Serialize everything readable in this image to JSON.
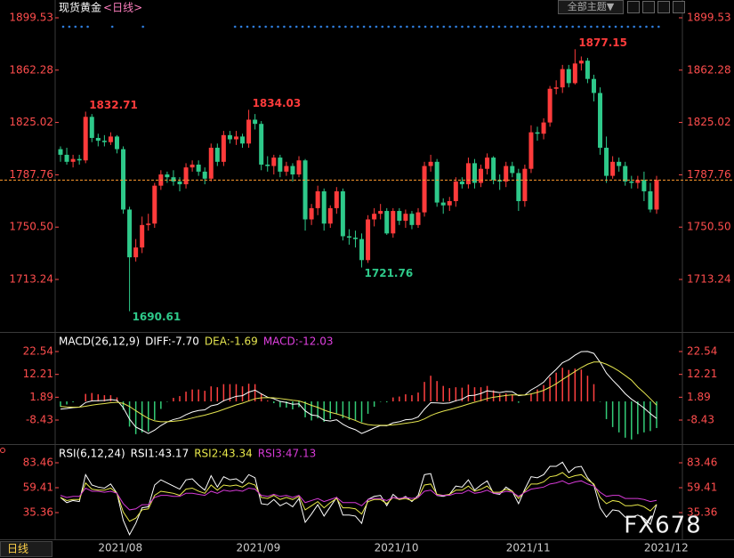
{
  "ui": {
    "theme_button": "全部主题▼",
    "tab": "日线",
    "watermark": "FX678"
  },
  "chart_data": [
    {
      "type": "candlestick",
      "title": "现货黄金",
      "subtitle": "<日线>",
      "categories": [
        null,
        null,
        null,
        null,
        null,
        null,
        "2021/08",
        null,
        null,
        null,
        null,
        null,
        null,
        null,
        null,
        null,
        null,
        null,
        null,
        null,
        null,
        null,
        null,
        null,
        null,
        null,
        null,
        null,
        "2021/09",
        null,
        null,
        null,
        null,
        null,
        null,
        null,
        null,
        null,
        null,
        null,
        null,
        null,
        null,
        null,
        null,
        null,
        null,
        null,
        null,
        null,
        "2021/10",
        null,
        null,
        null,
        null,
        null,
        null,
        null,
        null,
        null,
        null,
        null,
        null,
        null,
        null,
        null,
        null,
        null,
        null,
        null,
        null,
        "2021/11",
        null,
        null,
        null,
        null,
        null,
        null,
        null,
        null,
        null,
        null,
        null,
        null,
        null,
        null,
        null,
        null,
        null,
        null,
        null,
        null,
        null,
        "2021/12",
        null,
        null
      ],
      "open": [
        1806,
        1802,
        1797,
        1799,
        1798,
        1829,
        1814,
        1812,
        1811,
        1815,
        1806,
        1763,
        1729,
        1736,
        1752,
        1753,
        1780,
        1788,
        1786,
        1783,
        1781,
        1793,
        1795,
        1790,
        1785,
        1807,
        1797,
        1816,
        1813,
        1815,
        1810,
        1827,
        1824,
        1795,
        1794,
        1800,
        1790,
        1794,
        1788,
        1798,
        1756,
        1764,
        1776,
        1753,
        1764,
        1776,
        1744,
        1743,
        1742,
        1727,
        1756,
        1760,
        1762,
        1746,
        1762,
        1755,
        1760,
        1752,
        1761,
        1794,
        1797,
        1768,
        1766,
        1769,
        1783,
        1781,
        1796,
        1782,
        1792,
        1800,
        1784,
        1783,
        1794,
        1789,
        1769,
        1792,
        1818,
        1817,
        1825,
        1849,
        1850,
        1863,
        1853,
        1867,
        1869,
        1856,
        1846,
        1807,
        1787,
        1797,
        1794,
        1783,
        1782,
        1784,
        1776,
        1763
      ],
      "high": [
        1808,
        1807,
        1802,
        1802,
        1832.71,
        1831,
        1817,
        1816,
        1818,
        1816,
        1808,
        1765,
        1742,
        1758,
        1760,
        1782,
        1791,
        1790,
        1791,
        1786,
        1796,
        1798,
        1798,
        1793,
        1810,
        1810,
        1819,
        1819,
        1819,
        1817,
        1834.03,
        1831,
        1826,
        1801,
        1802,
        1802,
        1797,
        1796,
        1801,
        1799,
        1767,
        1780,
        1778,
        1766,
        1779,
        1778,
        1749,
        1748,
        1746,
        1759,
        1764,
        1767,
        1764,
        1764,
        1764,
        1763,
        1762,
        1764,
        1797,
        1802,
        1799,
        1771,
        1772,
        1786,
        1786,
        1800,
        1799,
        1795,
        1803,
        1801,
        1788,
        1797,
        1797,
        1792,
        1795,
        1823,
        1822,
        1828,
        1851,
        1855,
        1866,
        1866,
        1877.15,
        1872,
        1871,
        1859,
        1850,
        1815,
        1801,
        1800,
        1797,
        1787,
        1787,
        1790,
        1782,
        1787
      ],
      "low": [
        1797,
        1795,
        1793,
        1795,
        1796,
        1811,
        1808,
        1808,
        1809,
        1803,
        1760,
        1690.61,
        1726,
        1732,
        1748,
        1750,
        1777,
        1782,
        1780,
        1776,
        1778,
        1790,
        1787,
        1781,
        1783,
        1794,
        1794,
        1810,
        1809,
        1807,
        1807,
        1820,
        1791,
        1790,
        1788,
        1786,
        1787,
        1783,
        1786,
        1748,
        1752,
        1759,
        1748,
        1750,
        1760,
        1741,
        1738,
        1736,
        1721.76,
        1725,
        1751,
        1756,
        1745,
        1743,
        1752,
        1750,
        1749,
        1750,
        1758,
        1790,
        1765,
        1760,
        1762,
        1765,
        1778,
        1778,
        1778,
        1779,
        1788,
        1781,
        1777,
        1779,
        1786,
        1762,
        1765,
        1789,
        1812,
        1813,
        1822,
        1845,
        1846,
        1850,
        1852,
        1862,
        1853,
        1840,
        1802,
        1782,
        1785,
        1790,
        1780,
        1778,
        1778,
        1769,
        1761,
        1760
      ],
      "close": [
        1802,
        1797,
        1799,
        1798,
        1829,
        1814,
        1812,
        1811,
        1815,
        1806,
        1763,
        1729,
        1736,
        1752,
        1753,
        1780,
        1788,
        1786,
        1783,
        1781,
        1793,
        1795,
        1790,
        1785,
        1807,
        1797,
        1816,
        1813,
        1815,
        1810,
        1827,
        1824,
        1795,
        1794,
        1800,
        1790,
        1794,
        1788,
        1798,
        1756,
        1764,
        1776,
        1753,
        1764,
        1776,
        1744,
        1743,
        1742,
        1727,
        1756,
        1760,
        1762,
        1746,
        1762,
        1755,
        1760,
        1752,
        1761,
        1794,
        1797,
        1768,
        1766,
        1769,
        1783,
        1781,
        1796,
        1782,
        1792,
        1800,
        1784,
        1783,
        1794,
        1789,
        1769,
        1792,
        1818,
        1817,
        1825,
        1849,
        1850,
        1863,
        1853,
        1867,
        1869,
        1856,
        1846,
        1807,
        1787,
        1797,
        1794,
        1783,
        1782,
        1784,
        1776,
        1763,
        1784
      ],
      "up_color": "#ff3b3b",
      "down_color": "#2ec98a",
      "last_line_color": "#ff9a2e",
      "ylim": [
        1676.49,
        1912.2
      ],
      "yticks": [
        1899.53,
        1862.28,
        1825.02,
        1787.76,
        {
          "value": 1750.5,
          "label": "1750.50"
        },
        1713.24
      ]
    },
    {
      "type": "macd",
      "title": "MACD(26,12,9)",
      "series": [
        {
          "name": "DIFF:-7.70",
          "color": "#ffffff",
          "values": [
            -3.5,
            -3.2,
            -2.8,
            -2.6,
            -0.5,
            0.2,
            0.3,
            0.4,
            0.8,
            0.5,
            -2.8,
            -8.0,
            -11.6,
            -13.0,
            -14.5,
            -13.0,
            -10.9,
            -9.3,
            -8.2,
            -7.5,
            -6.0,
            -4.8,
            -4.1,
            -3.8,
            -2.0,
            -1.4,
            0.3,
            1.3,
            2.3,
            2.6,
            4.2,
            5.1,
            3.4,
            1.9,
            1.2,
            0.0,
            -0.5,
            -1.3,
            -1.1,
            -4.3,
            -6.1,
            -6.5,
            -8.5,
            -8.9,
            -8.3,
            -10.3,
            -11.8,
            -12.8,
            -14.5,
            -13.3,
            -12.0,
            -10.9,
            -11.0,
            -9.7,
            -9.2,
            -8.3,
            -8.1,
            -7.0,
            -3.5,
            -0.6,
            -0.7,
            -0.9,
            -0.7,
            0.3,
            1.0,
            2.6,
            2.8,
            3.6,
            4.8,
            4.4,
            4.0,
            4.5,
            4.4,
            2.6,
            2.9,
            5.2,
            6.8,
            8.7,
            11.9,
            14.5,
            17.5,
            18.8,
            20.9,
            22.5,
            22.6,
            21.7,
            17.7,
            12.8,
            9.6,
            6.7,
            3.5,
            1.0,
            -0.9,
            -3.0,
            -5.5,
            -7.7
          ]
        },
        {
          "name": "DEA:-1.69",
          "color": "#e5e550",
          "values": [
            -2.3,
            -2.5,
            -2.6,
            -2.6,
            -2.2,
            -1.7,
            -1.3,
            -1.0,
            -0.6,
            -0.4,
            -0.9,
            -2.3,
            -4.2,
            -6.0,
            -7.7,
            -8.8,
            -9.2,
            -9.2,
            -9.0,
            -8.7,
            -8.2,
            -7.5,
            -6.8,
            -6.2,
            -5.4,
            -4.6,
            -3.6,
            -2.6,
            -1.6,
            -0.8,
            0.2,
            1.2,
            1.6,
            1.7,
            1.6,
            1.3,
            0.9,
            0.5,
            0.2,
            -0.7,
            -1.8,
            -2.7,
            -3.9,
            -4.9,
            -5.6,
            -6.5,
            -7.6,
            -8.6,
            -9.8,
            -10.5,
            -10.8,
            -10.8,
            -10.8,
            -10.6,
            -10.3,
            -9.9,
            -9.5,
            -9.0,
            -7.9,
            -6.4,
            -5.3,
            -4.4,
            -3.7,
            -2.9,
            -2.1,
            -1.2,
            -0.4,
            0.4,
            1.3,
            1.9,
            2.3,
            2.7,
            3.0,
            2.9,
            2.9,
            3.4,
            4.1,
            5.0,
            6.4,
            8.0,
            9.9,
            11.7,
            13.5,
            15.3,
            16.8,
            17.8,
            17.8,
            16.8,
            15.4,
            13.7,
            11.7,
            9.6,
            6.5,
            4.0,
            1.2,
            -1.69
          ]
        },
        {
          "name": "MACD:-12.03",
          "color": "#e040e0",
          "style": "histogram",
          "up_color": "#ff4040",
          "down_color": "#33cc77",
          "values": [
            -2.4,
            -1.4,
            -0.4,
            0.0,
            3.4,
            3.8,
            3.2,
            2.8,
            2.8,
            1.8,
            -3.8,
            -11.4,
            -14.8,
            -14.0,
            -13.6,
            -8.4,
            -3.4,
            -0.2,
            1.6,
            2.4,
            4.4,
            5.4,
            5.4,
            4.8,
            6.8,
            6.4,
            7.8,
            7.8,
            7.8,
            6.8,
            8.0,
            7.8,
            3.6,
            0.4,
            -0.8,
            -2.6,
            -2.8,
            -3.6,
            -2.6,
            -7.2,
            -8.6,
            -7.6,
            -9.2,
            -8.0,
            -5.4,
            -7.6,
            -8.4,
            -8.4,
            -9.4,
            -5.6,
            -2.4,
            -0.2,
            -0.4,
            1.8,
            2.2,
            3.2,
            2.8,
            4.0,
            8.8,
            11.6,
            9.2,
            7.0,
            6.0,
            6.4,
            6.2,
            7.6,
            6.4,
            6.4,
            7.0,
            5.0,
            3.4,
            3.6,
            2.8,
            -0.6,
            0.0,
            3.6,
            5.4,
            7.4,
            11.0,
            13.0,
            15.2,
            14.2,
            14.8,
            14.4,
            11.6,
            7.8,
            -0.2,
            -8.0,
            -11.6,
            -14.0,
            -16.4,
            -17.2,
            -14.8,
            -14.0,
            -13.4,
            -12.03
          ]
        }
      ],
      "ylim": [
        -19.69,
        30.18
      ],
      "yticks": [
        22.54,
        12.21,
        1.89,
        -8.43
      ]
    },
    {
      "type": "line",
      "title": "RSI(6,12,24)",
      "series": [
        {
          "name": "RSI1:43.17",
          "color": "#ffffff",
          "values": [
            50,
            45,
            47,
            46,
            72,
            62,
            60,
            59,
            63,
            54,
            28,
            14,
            25,
            40,
            41,
            62,
            67,
            64,
            61,
            58,
            67,
            68,
            62,
            57,
            71,
            60,
            70,
            67,
            68,
            64,
            72,
            69,
            44,
            43,
            48,
            42,
            45,
            41,
            49,
            26,
            34,
            43,
            32,
            41,
            50,
            33,
            33,
            32,
            25,
            48,
            51,
            52,
            42,
            53,
            48,
            51,
            46,
            52,
            72,
            73,
            52,
            51,
            53,
            61,
            60,
            67,
            57,
            62,
            66,
            54,
            53,
            60,
            56,
            44,
            58,
            70,
            69,
            72,
            80,
            80,
            84,
            74,
            79,
            80,
            69,
            62,
            40,
            31,
            38,
            37,
            31,
            31,
            33,
            30,
            24,
            43.17
          ]
        },
        {
          "name": "RSI2:43.34",
          "color": "#e8e84a",
          "values": [
            50,
            47,
            48,
            48,
            64,
            58,
            57,
            57,
            59,
            54,
            36,
            27,
            30,
            38,
            39,
            52,
            56,
            55,
            54,
            52,
            58,
            59,
            56,
            54,
            62,
            57,
            62,
            61,
            62,
            60,
            64,
            62,
            50,
            49,
            52,
            48,
            50,
            48,
            51,
            38,
            42,
            46,
            40,
            45,
            49,
            40,
            40,
            39,
            34,
            46,
            48,
            48,
            44,
            50,
            48,
            49,
            47,
            50,
            62,
            63,
            53,
            52,
            53,
            57,
            57,
            61,
            56,
            58,
            61,
            55,
            55,
            58,
            56,
            49,
            56,
            63,
            63,
            65,
            70,
            71,
            74,
            69,
            71,
            72,
            67,
            63,
            50,
            44,
            47,
            46,
            42,
            42,
            43,
            41,
            37,
            43.34
          ]
        },
        {
          "name": "RSI3:47.13",
          "color": "#d63ad6",
          "values": [
            52,
            50,
            51,
            51,
            59,
            56,
            56,
            55,
            56,
            54,
            44,
            38,
            39,
            43,
            43,
            50,
            52,
            52,
            51,
            51,
            54,
            54,
            53,
            52,
            56,
            54,
            57,
            56,
            57,
            56,
            59,
            58,
            52,
            51,
            53,
            51,
            52,
            50,
            52,
            45,
            47,
            49,
            46,
            48,
            50,
            45,
            45,
            45,
            42,
            48,
            49,
            49,
            47,
            50,
            49,
            50,
            49,
            50,
            56,
            57,
            52,
            52,
            52,
            54,
            54,
            57,
            54,
            55,
            57,
            54,
            54,
            56,
            55,
            51,
            55,
            58,
            59,
            60,
            63,
            64,
            66,
            63,
            65,
            66,
            63,
            61,
            55,
            51,
            52,
            52,
            49,
            49,
            49,
            48,
            46,
            47.13
          ]
        }
      ],
      "ylim": [
        9.59,
        98.92
      ],
      "yticks": [
        83.46,
        59.41,
        35.36
      ]
    }
  ]
}
